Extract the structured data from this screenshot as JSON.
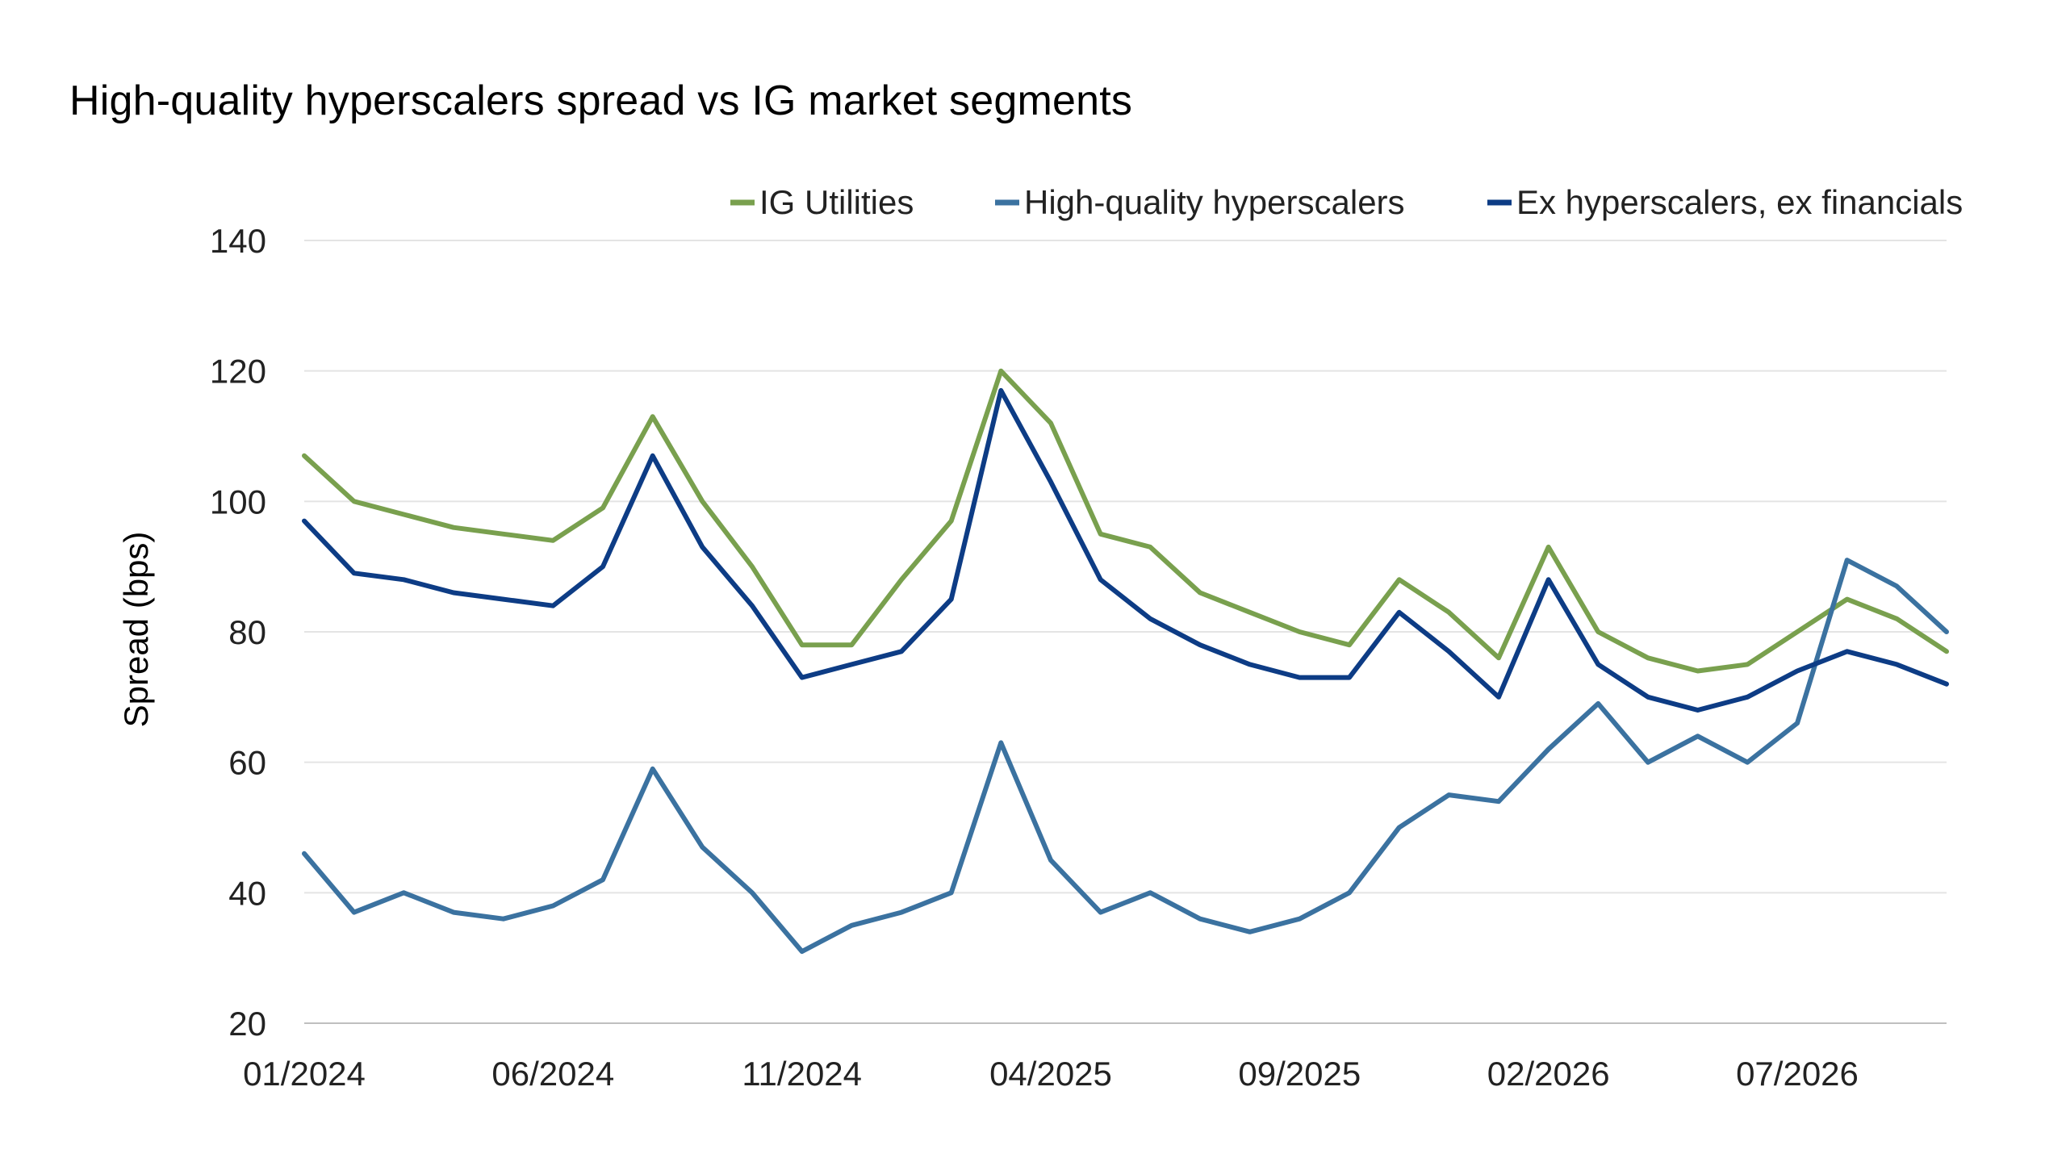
{
  "chart_data": {
    "type": "line",
    "title": "High-quality hyperscalers spread vs IG market segments",
    "ylabel": "Spread (bps)",
    "xlabel": "",
    "ylim": [
      20,
      140
    ],
    "yticks": [
      20,
      40,
      60,
      80,
      100,
      120,
      140
    ],
    "xlim": [
      "2024-01",
      "2026-10"
    ],
    "xticks": [
      "01/2024",
      "06/2024",
      "11/2024",
      "04/2025",
      "09/2025",
      "02/2026",
      "07/2026"
    ],
    "grid": "horizontal",
    "legend_position": "top",
    "x": [
      "2024-01",
      "2024-02",
      "2024-03",
      "2024-04",
      "2024-05",
      "2024-06",
      "2024-07",
      "2024-08",
      "2024-09",
      "2024-10",
      "2024-11",
      "2024-12",
      "2025-01",
      "2025-02",
      "2025-03",
      "2025-04",
      "2025-05",
      "2025-06",
      "2025-07",
      "2025-08",
      "2025-09",
      "2025-10",
      "2025-11",
      "2025-12",
      "2026-01",
      "2026-02",
      "2026-03",
      "2026-04",
      "2026-05",
      "2026-06",
      "2026-07",
      "2026-08",
      "2026-09",
      "2026-10"
    ],
    "series": [
      {
        "name": "IG Utilities",
        "color": "#79A04E",
        "values": [
          107,
          100,
          98,
          96,
          95,
          94,
          99,
          113,
          100,
          90,
          78,
          78,
          88,
          97,
          120,
          112,
          95,
          93,
          86,
          83,
          80,
          78,
          88,
          83,
          76,
          93,
          80,
          76,
          74,
          75,
          80,
          85,
          82,
          77
        ]
      },
      {
        "name": "High-quality hyperscalers",
        "color": "#3B72A0",
        "values": [
          46,
          37,
          40,
          37,
          36,
          38,
          42,
          59,
          47,
          40,
          31,
          35,
          37,
          40,
          63,
          45,
          37,
          40,
          36,
          34,
          36,
          40,
          50,
          55,
          54,
          62,
          69,
          60,
          64,
          60,
          66,
          91,
          87,
          80
        ]
      },
      {
        "name": "Ex hyperscalers, ex financials",
        "color": "#0D3C85",
        "values": [
          97,
          89,
          88,
          86,
          85,
          84,
          90,
          107,
          93,
          84,
          73,
          75,
          77,
          85,
          117,
          103,
          88,
          82,
          78,
          75,
          73,
          73,
          83,
          77,
          70,
          88,
          75,
          70,
          68,
          70,
          74,
          77,
          75,
          72
        ]
      }
    ]
  }
}
